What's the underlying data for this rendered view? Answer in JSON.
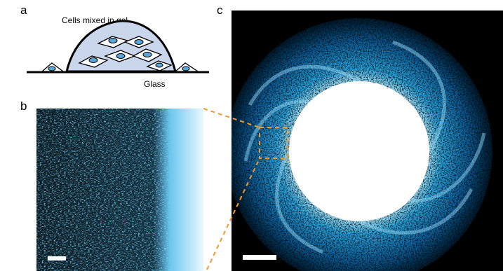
{
  "panels": {
    "a": {
      "label": "a",
      "gel_label": "Cells mixed in gel",
      "substrate_label": "Glass"
    },
    "b": {
      "label": "b"
    },
    "c": {
      "label": "c"
    }
  }
}
